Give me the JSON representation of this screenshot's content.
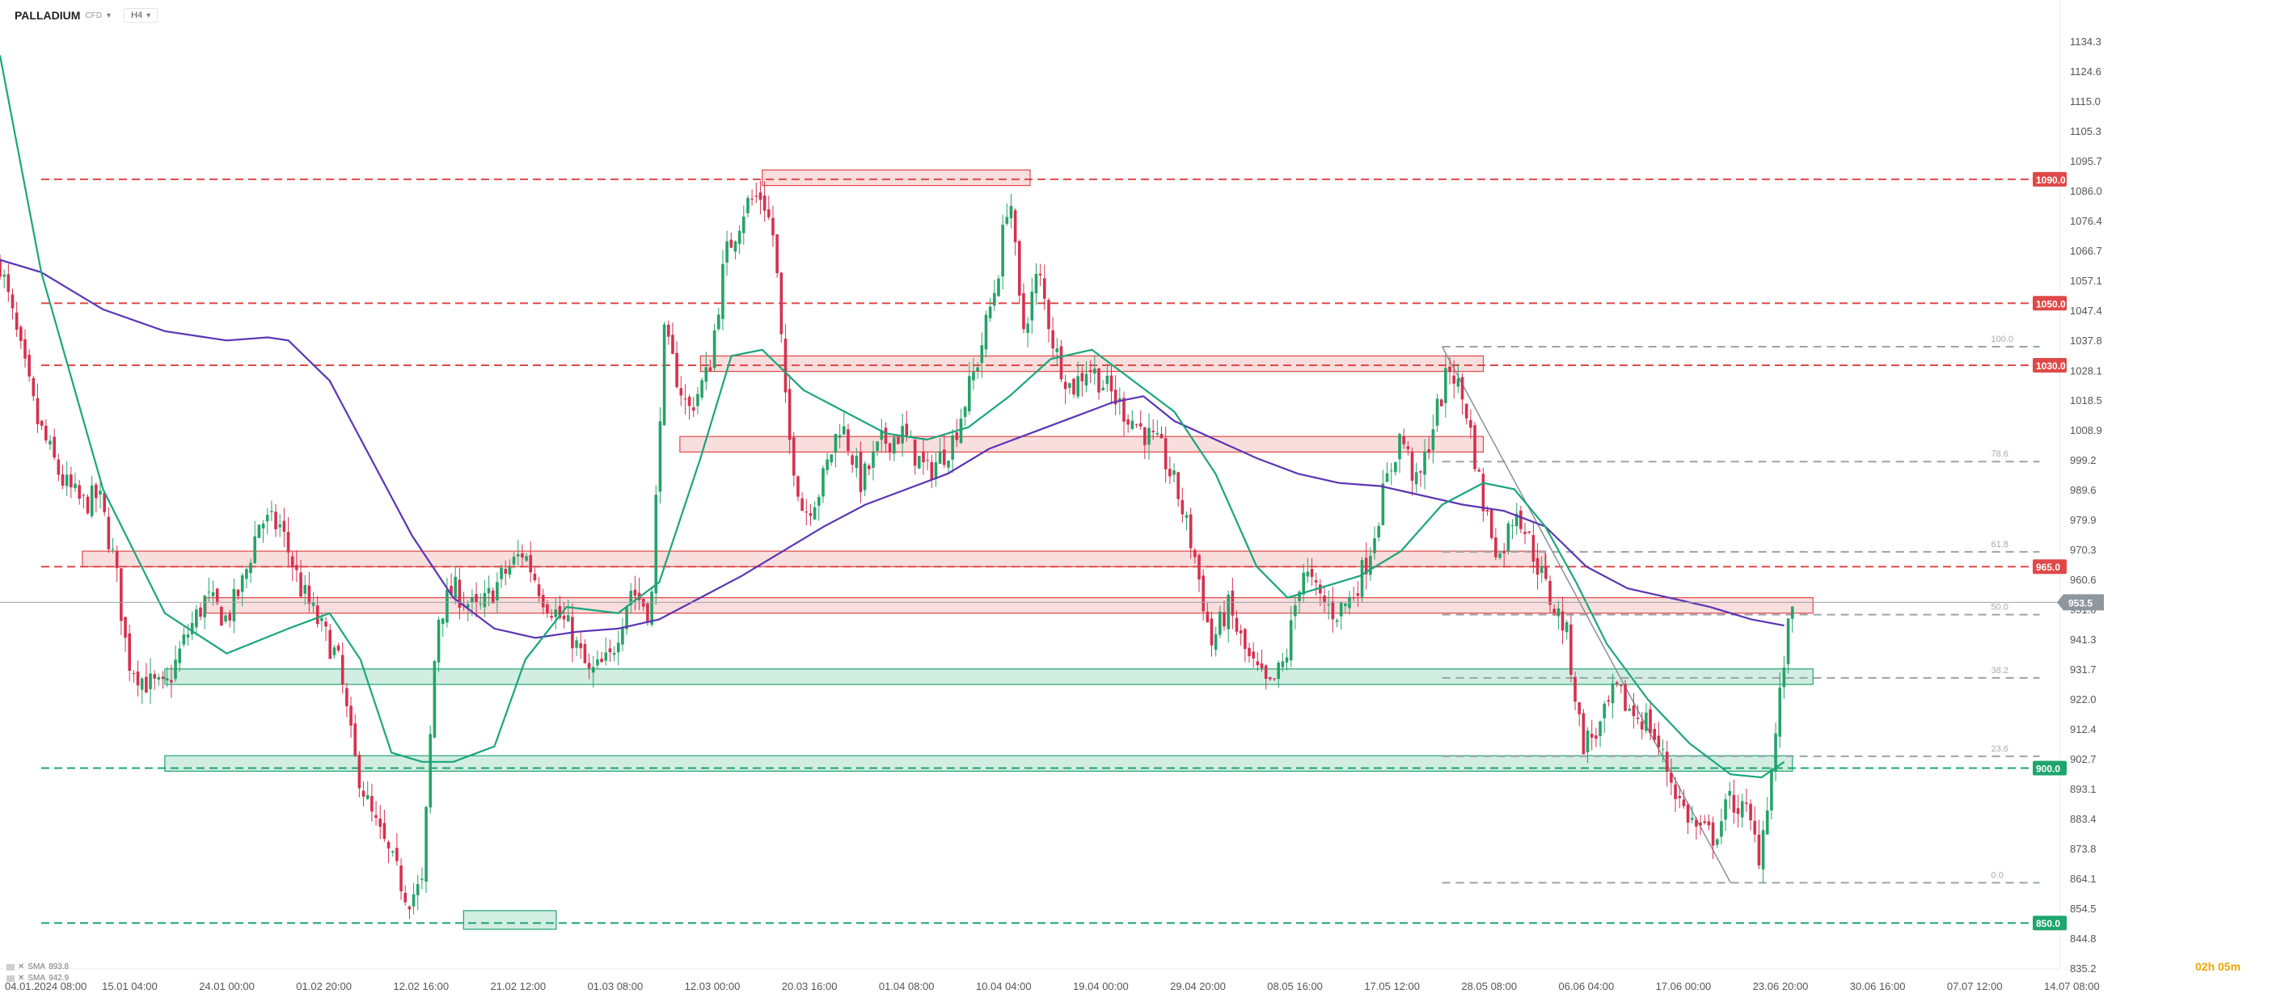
{
  "instrument": {
    "symbol": "PALLADIUM",
    "sub": "CFD",
    "timeframe": "H4"
  },
  "indicators": [
    {
      "label": "SMA",
      "value": "893.8"
    },
    {
      "label": "SMA",
      "value": "942.9"
    }
  ],
  "countdown": "02h 05m",
  "chart_data": {
    "type": "candlestick",
    "y_min": 835.2,
    "y_max": 1134.3,
    "price_ticks": [
      "1134.3",
      "1124.6",
      "1115.0",
      "1105.3",
      "1095.7",
      "1086.0",
      "1076.4",
      "1066.7",
      "1057.1",
      "1047.4",
      "1037.8",
      "1028.1",
      "1018.5",
      "1008.9",
      "999.2",
      "989.6",
      "979.9",
      "970.3",
      "960.6",
      "951.0",
      "941.3",
      "931.7",
      "922.0",
      "912.4",
      "902.7",
      "893.1",
      "883.4",
      "873.8",
      "864.1",
      "854.5",
      "844.8",
      "835.2"
    ],
    "time_labels": [
      "04.01.2024 08:00",
      "15.01 04:00",
      "24.01 00:00",
      "01.02 20:00",
      "12.02 16:00",
      "21.02 12:00",
      "01.03 08:00",
      "12.03 00:00",
      "20.03 16:00",
      "01.04 08:00",
      "10.04 04:00",
      "19.04 00:00",
      "29.04 20:00",
      "08.05 16:00",
      "17.05 12:00",
      "28.05 08:00",
      "06.06 04:00",
      "17.06 00:00",
      "23.06 20:00",
      "30.06 16:00",
      "07.07 12:00",
      "14.07 08:00"
    ],
    "current_price": "953.5",
    "current_value": 953.5,
    "colors": {
      "bull": "#26a269",
      "bear": "#d5314f",
      "sma_fast": "#1aa67c",
      "sma_slow": "#5b35b5",
      "resistance": "#e04848",
      "support": "#1fa56e"
    },
    "levels": [
      {
        "label": "1090.0",
        "value": 1090.0,
        "kind": "resistance"
      },
      {
        "label": "1050.0",
        "value": 1050.0,
        "kind": "resistance"
      },
      {
        "label": "1030.0",
        "value": 1030.0,
        "kind": "resistance"
      },
      {
        "label": "965.0",
        "value": 965.0,
        "kind": "resistance"
      },
      {
        "label": "900.0",
        "value": 900.0,
        "kind": "support"
      },
      {
        "label": "850.0",
        "value": 850.0,
        "kind": "support"
      }
    ],
    "zones": [
      {
        "kind": "resistance",
        "start": 0.37,
        "end": 0.5,
        "low": 1088,
        "high": 1093
      },
      {
        "kind": "resistance",
        "start": 0.34,
        "end": 0.72,
        "low": 1028,
        "high": 1033
      },
      {
        "kind": "resistance",
        "start": 0.33,
        "end": 0.72,
        "low": 1002,
        "high": 1007
      },
      {
        "kind": "resistance",
        "start": 0.04,
        "end": 0.75,
        "low": 965,
        "high": 970
      },
      {
        "kind": "resistance",
        "start": 0.1,
        "end": 0.88,
        "low": 950,
        "high": 955
      },
      {
        "kind": "support",
        "start": 0.08,
        "end": 0.88,
        "low": 927,
        "high": 932
      },
      {
        "kind": "support",
        "start": 0.08,
        "end": 0.87,
        "low": 899,
        "high": 904
      },
      {
        "kind": "support",
        "start": 0.225,
        "end": 0.27,
        "low": 848,
        "high": 854
      }
    ],
    "fibonacci": {
      "start": 0.7,
      "end": 0.99,
      "high": 1036,
      "low": 863,
      "levels": [
        {
          "ratio": "100.0",
          "value": 1036.0
        },
        {
          "ratio": "78.6",
          "value": 998.9
        },
        {
          "ratio": "61.8",
          "value": 969.8
        },
        {
          "ratio": "50.0",
          "value": 949.5
        },
        {
          "ratio": "38.2",
          "value": 929.1
        },
        {
          "ratio": "23.6",
          "value": 903.8
        },
        {
          "ratio": "0.0",
          "value": 863.0
        }
      ]
    },
    "fib_trendline": {
      "from": [
        0.7,
        1036
      ],
      "to": [
        0.84,
        863
      ]
    },
    "price_path": [
      [
        0.0,
        1063
      ],
      [
        0.008,
        1040
      ],
      [
        0.018,
        1012
      ],
      [
        0.03,
        993
      ],
      [
        0.04,
        985
      ],
      [
        0.048,
        988
      ],
      [
        0.056,
        965
      ],
      [
        0.062,
        935
      ],
      [
        0.07,
        928
      ],
      [
        0.08,
        925
      ],
      [
        0.09,
        942
      ],
      [
        0.1,
        955
      ],
      [
        0.11,
        948
      ],
      [
        0.118,
        960
      ],
      [
        0.126,
        980
      ],
      [
        0.136,
        978
      ],
      [
        0.146,
        958
      ],
      [
        0.156,
        945
      ],
      [
        0.164,
        935
      ],
      [
        0.172,
        903
      ],
      [
        0.18,
        885
      ],
      [
        0.19,
        870
      ],
      [
        0.198,
        858
      ],
      [
        0.205,
        862
      ],
      [
        0.212,
        948
      ],
      [
        0.22,
        958
      ],
      [
        0.232,
        950
      ],
      [
        0.244,
        962
      ],
      [
        0.254,
        970
      ],
      [
        0.264,
        955
      ],
      [
        0.276,
        945
      ],
      [
        0.286,
        930
      ],
      [
        0.296,
        935
      ],
      [
        0.306,
        958
      ],
      [
        0.316,
        950
      ],
      [
        0.322,
        1040
      ],
      [
        0.334,
        1015
      ],
      [
        0.344,
        1028
      ],
      [
        0.352,
        1065
      ],
      [
        0.362,
        1082
      ],
      [
        0.37,
        1085
      ],
      [
        0.376,
        1070
      ],
      [
        0.382,
        1010
      ],
      [
        0.39,
        982
      ],
      [
        0.398,
        990
      ],
      [
        0.408,
        1012
      ],
      [
        0.418,
        992
      ],
      [
        0.428,
        1005
      ],
      [
        0.438,
        1008
      ],
      [
        0.45,
        995
      ],
      [
        0.462,
        1005
      ],
      [
        0.474,
        1030
      ],
      [
        0.484,
        1058
      ],
      [
        0.49,
        1088
      ],
      [
        0.496,
        1040
      ],
      [
        0.504,
        1060
      ],
      [
        0.512,
        1035
      ],
      [
        0.52,
        1022
      ],
      [
        0.528,
        1030
      ],
      [
        0.538,
        1022
      ],
      [
        0.546,
        1015
      ],
      [
        0.556,
        1008
      ],
      [
        0.564,
        1002
      ],
      [
        0.572,
        988
      ],
      [
        0.58,
        968
      ],
      [
        0.588,
        940
      ],
      [
        0.596,
        952
      ],
      [
        0.606,
        935
      ],
      [
        0.616,
        925
      ],
      [
        0.624,
        935
      ],
      [
        0.632,
        965
      ],
      [
        0.64,
        955
      ],
      [
        0.648,
        950
      ],
      [
        0.656,
        955
      ],
      [
        0.664,
        968
      ],
      [
        0.672,
        990
      ],
      [
        0.68,
        1008
      ],
      [
        0.688,
        990
      ],
      [
        0.696,
        1012
      ],
      [
        0.704,
        1030
      ],
      [
        0.712,
        1015
      ],
      [
        0.72,
        985
      ],
      [
        0.728,
        968
      ],
      [
        0.736,
        985
      ],
      [
        0.744,
        970
      ],
      [
        0.752,
        955
      ],
      [
        0.76,
        945
      ],
      [
        0.768,
        908
      ],
      [
        0.776,
        912
      ],
      [
        0.784,
        925
      ],
      [
        0.792,
        918
      ],
      [
        0.8,
        915
      ],
      [
        0.808,
        902
      ],
      [
        0.816,
        888
      ],
      [
        0.824,
        880
      ],
      [
        0.832,
        878
      ],
      [
        0.84,
        890
      ],
      [
        0.848,
        885
      ],
      [
        0.854,
        872
      ],
      [
        0.86,
        900
      ],
      [
        0.866,
        935
      ],
      [
        0.87,
        953
      ]
    ],
    "sma_fast_path": [
      [
        0.0,
        1130
      ],
      [
        0.02,
        1060
      ],
      [
        0.05,
        990
      ],
      [
        0.08,
        950
      ],
      [
        0.11,
        937
      ],
      [
        0.14,
        945
      ],
      [
        0.16,
        950
      ],
      [
        0.175,
        935
      ],
      [
        0.19,
        905
      ],
      [
        0.205,
        902
      ],
      [
        0.22,
        902
      ],
      [
        0.24,
        907
      ],
      [
        0.255,
        935
      ],
      [
        0.275,
        952
      ],
      [
        0.3,
        950
      ],
      [
        0.32,
        960
      ],
      [
        0.34,
        1000
      ],
      [
        0.355,
        1033
      ],
      [
        0.37,
        1035
      ],
      [
        0.39,
        1022
      ],
      [
        0.41,
        1015
      ],
      [
        0.43,
        1008
      ],
      [
        0.45,
        1006
      ],
      [
        0.47,
        1010
      ],
      [
        0.49,
        1020
      ],
      [
        0.51,
        1032
      ],
      [
        0.53,
        1035
      ],
      [
        0.55,
        1025
      ],
      [
        0.57,
        1015
      ],
      [
        0.59,
        995
      ],
      [
        0.61,
        965
      ],
      [
        0.625,
        955
      ],
      [
        0.64,
        958
      ],
      [
        0.66,
        962
      ],
      [
        0.68,
        970
      ],
      [
        0.7,
        985
      ],
      [
        0.72,
        992
      ],
      [
        0.735,
        990
      ],
      [
        0.75,
        978
      ],
      [
        0.765,
        960
      ],
      [
        0.78,
        940
      ],
      [
        0.8,
        922
      ],
      [
        0.82,
        908
      ],
      [
        0.84,
        898
      ],
      [
        0.855,
        897
      ],
      [
        0.866,
        902
      ]
    ],
    "sma_slow_path": [
      [
        0.0,
        1064
      ],
      [
        0.02,
        1060
      ],
      [
        0.05,
        1048
      ],
      [
        0.08,
        1041
      ],
      [
        0.11,
        1038
      ],
      [
        0.13,
        1039
      ],
      [
        0.14,
        1038
      ],
      [
        0.16,
        1025
      ],
      [
        0.18,
        1000
      ],
      [
        0.2,
        975
      ],
      [
        0.22,
        955
      ],
      [
        0.24,
        945
      ],
      [
        0.26,
        942
      ],
      [
        0.28,
        944
      ],
      [
        0.3,
        945
      ],
      [
        0.32,
        948
      ],
      [
        0.34,
        955
      ],
      [
        0.36,
        962
      ],
      [
        0.38,
        970
      ],
      [
        0.4,
        978
      ],
      [
        0.42,
        985
      ],
      [
        0.44,
        990
      ],
      [
        0.46,
        995
      ],
      [
        0.48,
        1003
      ],
      [
        0.5,
        1008
      ],
      [
        0.52,
        1013
      ],
      [
        0.54,
        1018
      ],
      [
        0.555,
        1020
      ],
      [
        0.57,
        1012
      ],
      [
        0.59,
        1006
      ],
      [
        0.61,
        1000
      ],
      [
        0.63,
        995
      ],
      [
        0.65,
        992
      ],
      [
        0.67,
        991
      ],
      [
        0.69,
        988
      ],
      [
        0.71,
        985
      ],
      [
        0.73,
        983
      ],
      [
        0.75,
        978
      ],
      [
        0.77,
        965
      ],
      [
        0.79,
        958
      ],
      [
        0.81,
        955
      ],
      [
        0.83,
        952
      ],
      [
        0.85,
        948
      ],
      [
        0.866,
        946
      ]
    ]
  }
}
